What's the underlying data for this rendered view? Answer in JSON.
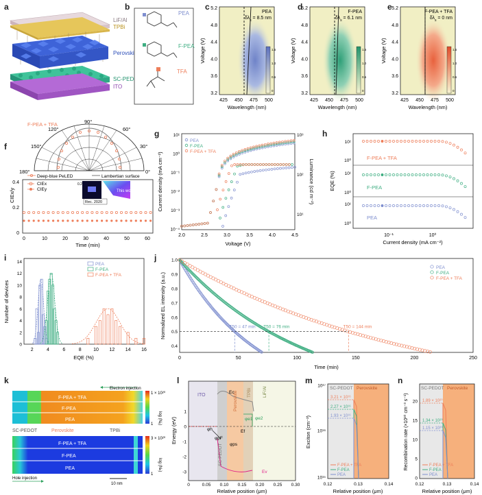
{
  "panel_labels": [
    "a",
    "b",
    "c",
    "d",
    "e",
    "f",
    "g",
    "h",
    "i",
    "j",
    "k",
    "l",
    "m",
    "n"
  ],
  "a": {
    "layers": [
      "LiF/Al",
      "TPBi",
      "Perovskite",
      "SC-PEDOT",
      "ITO"
    ]
  },
  "b": {
    "molecules": [
      "PEA",
      "F-PEA",
      "TFA"
    ]
  },
  "spectra": {
    "ylabel": "Voltage (V)",
    "xlabel": "Wavelength (nm)",
    "yticks": [
      "5.2",
      "4.8",
      "4.4",
      "4.0",
      "3.6",
      "3.2"
    ],
    "xticks": [
      "425",
      "450",
      "475",
      "500"
    ],
    "cbar_ticks": [
      "1.5",
      "1.0",
      "0.5",
      "0"
    ],
    "panels": [
      {
        "label": "PEA",
        "delta": "δλ",
        "sub": "s",
        "value": " = 8.5 nm",
        "color": "#8fa2d4"
      },
      {
        "label": "F-PEA",
        "delta": "δλ",
        "sub": "s",
        "value": " = 6.1 nm",
        "color": "#4cb38a"
      },
      {
        "label": "F-PEA + TFA",
        "delta": "δλ",
        "sub": "s",
        "value": " = 0 nm",
        "color": "#ea7a58"
      }
    ]
  },
  "f": {
    "legend_top": "F-PEA + TFA",
    "angles": [
      "90°",
      "60°",
      "120°",
      "150°",
      "30°",
      "180°",
      "0°"
    ],
    "deep_blue": "Deep-blue PeLED",
    "lambertian": "Lambertian surface",
    "ylabel": "CIEx/y",
    "cie_x": "CIEx",
    "cie_y": "CIEy",
    "inset_axis": "0.2",
    "rec": "Rec. 2020",
    "this_work": "This work",
    "xlabel": "Time (min)",
    "yticks": [
      "0.4",
      "0.2",
      "0"
    ],
    "xticks": [
      "0",
      "10",
      "20",
      "30",
      "40",
      "50",
      "60"
    ]
  },
  "g": {
    "legend": [
      "PEA",
      "F-PEA",
      "F-PEA + TFA"
    ],
    "ylabel": "Current density (mA cm⁻²)",
    "y2label": "Luminance (cd m⁻²)",
    "xlabel": "Voltage (V)",
    "yticks": [
      "10¹",
      "10⁰",
      "10⁻¹",
      "10⁻²",
      "10⁻³",
      "10⁻⁴"
    ],
    "y2ticks": [
      "10³",
      "10²",
      "10¹"
    ],
    "xticks": [
      "2.0",
      "2.5",
      "3.0",
      "3.5",
      "4.0",
      "4.5"
    ]
  },
  "h": {
    "ylabel": "EQE (%)",
    "xlabel": "Current density (mA cm⁻²)",
    "labels": [
      "F-PEA + TFA",
      "F-PEA",
      "PEA"
    ],
    "yticks": [
      "10¹",
      "10⁰",
      "10¹",
      "10⁰",
      "10¹",
      "10⁰"
    ],
    "xticks": [
      "10⁻¹",
      "10⁰"
    ]
  },
  "i": {
    "legend": [
      "PEA",
      "F-PEA",
      "F-PEA + TFA"
    ],
    "ylabel": "Number of devices",
    "xlabel": "EQE (%)",
    "yticks": [
      "0",
      "2",
      "4",
      "6",
      "8",
      "10",
      "12",
      "14"
    ],
    "xticks": [
      "2",
      "4",
      "6",
      "8",
      "10",
      "12",
      "14",
      "16"
    ]
  },
  "j": {
    "legend": [
      "PEA",
      "F-PEA",
      "F-PEA + TFA"
    ],
    "ylabel": "Normalized EL intensity (a.u.)",
    "xlabel": "Time (min)",
    "t50": [
      "T50 = 47 min",
      "T50 = 76 min",
      "T50 = 144 min"
    ],
    "yticks": [
      "1.0",
      "0.9",
      "0.8",
      "0.7",
      "0.6",
      "0.5",
      "0.4"
    ],
    "xticks": [
      "0",
      "50",
      "100",
      "150",
      "200",
      "250"
    ]
  },
  "k": {
    "electron": "Electron injection",
    "hole": "Hole injection",
    "rows": [
      "F-PEA + TFA",
      "F-PEA",
      "PEA"
    ],
    "layers": [
      "SC-PEDOT",
      "Perovskite",
      "TPBi"
    ],
    "cbar1": [
      "1 × 10²⁰",
      "1"
    ],
    "cbar2": [
      "3 × 10²⁰",
      "1"
    ],
    "cbar_label": "log (Nₑ)",
    "cbar_label2": "log (Nₕ)",
    "scale": "10 nm"
  },
  "l": {
    "ylabel": "Energy (eV)",
    "xlabel": "Relative position (μm)",
    "regions": [
      "ITO",
      "SC-PEDOT",
      "Perovskite",
      "TPBi",
      "LiF/Al"
    ],
    "marks": [
      "Ec",
      "Ef",
      "Ev",
      "φh",
      "φpF",
      "φps",
      "φe1",
      "φe2"
    ],
    "yticks": [
      "1",
      "0",
      "-1",
      "-2",
      "-3"
    ],
    "xticks": [
      "0",
      "0.05",
      "0.10",
      "0.15",
      "0.20",
      "0.25",
      "0.30"
    ]
  },
  "m": {
    "ylabel": "Exciton (cm⁻³)",
    "xlabel": "Relative position (μm)",
    "regions": [
      "SC-PEDOT",
      "Perovskite"
    ],
    "values": [
      "3.21 × 10¹⁶",
      "2.27 × 10¹⁶",
      "1.93 × 10¹⁶"
    ],
    "legend": [
      "F-PEA + TFA",
      "F-PEA",
      "PEA"
    ],
    "yticks": [
      "10¹⁷",
      "10¹⁶",
      "10¹⁵"
    ],
    "xticks": [
      "0.12",
      "0.13",
      "0.14"
    ]
  },
  "n": {
    "ylabel": "Recombination rate (×10²⁰ cm⁻³ s⁻¹)",
    "xlabel": "Relative position (μm)",
    "regions": [
      "SC-PEDOT",
      "Perovskite"
    ],
    "values": [
      "1.89 × 10²⁰",
      "1.34 × 10²⁰",
      "1.15 × 10²⁰"
    ],
    "legend": [
      "F-PEA + TFA",
      "F-PEA",
      "PEA"
    ],
    "yticks": [
      "20",
      "15",
      "10",
      "5",
      "0"
    ],
    "xticks": [
      "0.12",
      "0.13",
      "0.14"
    ]
  },
  "colors": {
    "pea": "#7f8fcf",
    "fpea": "#3fae82",
    "tfa": "#ee7e5a"
  }
}
